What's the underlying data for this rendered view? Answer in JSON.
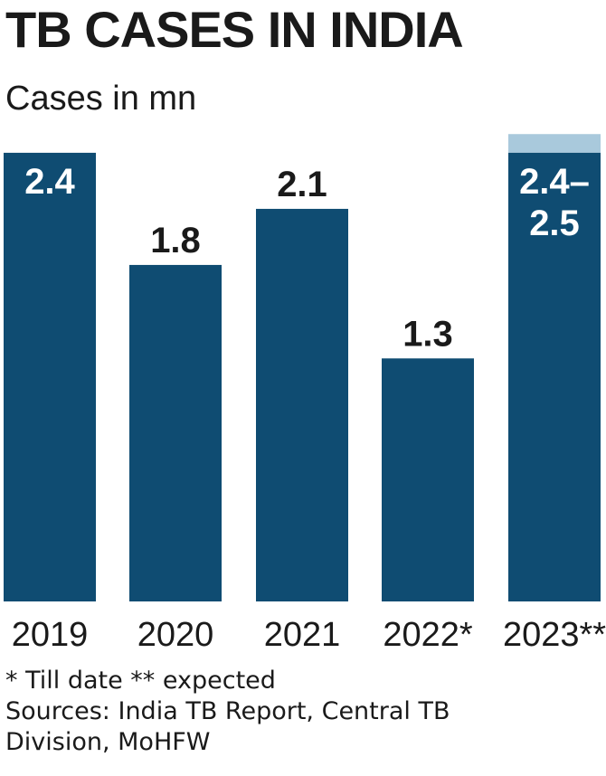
{
  "chart_data": {
    "type": "bar",
    "title": "TB CASES IN INDIA",
    "subtitle": "Cases in mn",
    "xlabel": "",
    "ylabel": "",
    "ylim": [
      0,
      2.5
    ],
    "grid": false,
    "categories": [
      "2019",
      "2020",
      "2021",
      "2022*",
      "2023**"
    ],
    "values": [
      2.4,
      1.8,
      2.1,
      1.3,
      2.4
    ],
    "ranges": [
      null,
      null,
      null,
      null,
      [
        2.4,
        2.5
      ]
    ],
    "data_labels": [
      "2.4",
      "1.8",
      "2.1",
      "1.3",
      "2.4–\n2.5"
    ],
    "label_inside_bar": [
      true,
      false,
      false,
      false,
      true
    ],
    "bar_color": "#0f4c72",
    "range_color": "#a9c9dc"
  },
  "footnotes": {
    "legend": "* Till date ** expected",
    "source_line_1": "Sources: India TB Report, Central TB",
    "source_line_2": "Division, MoHFW"
  }
}
